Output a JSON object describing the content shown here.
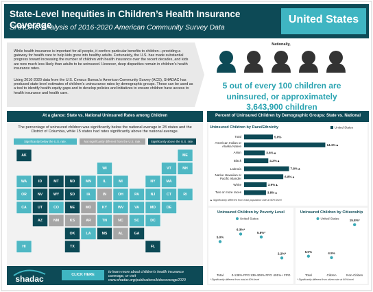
{
  "header": {
    "title": "State-Level Inequities in Children’s Health Insurance Coverage",
    "subtitle": "SHADAC Analysis of 2016-2020 American Community Survey Data",
    "location": "United States"
  },
  "intro": {
    "paragraphs": [
      "While health insurance is important for all people, it confers particular benefits to children—providing a gateway for health care to help kids grow into healthy adults. Fortunately, the U.S. has made substantial progress toward increasing the number of children with health insurance over the recent decades, and kids are now much less likely than adults to be uninsured. However, deep disparities remain in children’s health insurance rates.",
      "Using 2016-2020 data from the U.S. Census Bureau’s American Community Survey (ACS), SHADAC has produced state-level estimates of children’s uninsurance rates by demographic groups. These can be used as a tool to identify health equity gaps and to develop policies and initiatives to ensure children have access to health insurance and health care."
    ]
  },
  "national": {
    "lead": "Nationally,",
    "statement": "5 out of every 100 children are uninsured, or approximately 3,643,900 children"
  },
  "map_panel": {
    "heading": "At a glance: State vs. National Uninsured Rates among Children",
    "summary": "The percentage of uninsured children was significantly below the national average in 28 states and the District of Columbia, while 15 states had rates significantly above the national average.",
    "legend": [
      {
        "label": "Significantly below the U.S. rate.",
        "color": "#4fb8c4"
      },
      {
        "label": "Not significantly different from the U.S. rate.",
        "color": "#a6a6a6"
      },
      {
        "label": "Significantly above the U.S. rate.",
        "color": "#0d4a56"
      }
    ],
    "states": [
      {
        "abbr": "AK",
        "status": 2
      },
      {
        "abbr": "ME",
        "status": 0
      },
      {
        "abbr": "WI",
        "status": 0
      },
      {
        "abbr": "VT",
        "status": 0
      },
      {
        "abbr": "NH",
        "status": 0
      },
      {
        "abbr": "WA",
        "status": 0
      },
      {
        "abbr": "ID",
        "status": 2
      },
      {
        "abbr": "MT",
        "status": 2
      },
      {
        "abbr": "ND",
        "status": 2
      },
      {
        "abbr": "MN",
        "status": 0
      },
      {
        "abbr": "IL",
        "status": 0
      },
      {
        "abbr": "MI",
        "status": 0
      },
      {
        "abbr": "NY",
        "status": 0
      },
      {
        "abbr": "MA",
        "status": 0
      },
      {
        "abbr": "OR",
        "status": 0
      },
      {
        "abbr": "NV",
        "status": 2
      },
      {
        "abbr": "WY",
        "status": 2
      },
      {
        "abbr": "SD",
        "status": 2
      },
      {
        "abbr": "IA",
        "status": 0
      },
      {
        "abbr": "IN",
        "status": 1
      },
      {
        "abbr": "OH",
        "status": 0
      },
      {
        "abbr": "PA",
        "status": 0
      },
      {
        "abbr": "NJ",
        "status": 0
      },
      {
        "abbr": "CT",
        "status": 0
      },
      {
        "abbr": "RI",
        "status": 0
      },
      {
        "abbr": "CA",
        "status": 0
      },
      {
        "abbr": "UT",
        "status": 2
      },
      {
        "abbr": "CO",
        "status": 0
      },
      {
        "abbr": "NE",
        "status": 2
      },
      {
        "abbr": "MO",
        "status": 1
      },
      {
        "abbr": "KY",
        "status": 0
      },
      {
        "abbr": "WV",
        "status": 0
      },
      {
        "abbr": "VA",
        "status": 0
      },
      {
        "abbr": "MD",
        "status": 0
      },
      {
        "abbr": "DE",
        "status": 0
      },
      {
        "abbr": "AZ",
        "status": 2
      },
      {
        "abbr": "NM",
        "status": 1
      },
      {
        "abbr": "KS",
        "status": 1
      },
      {
        "abbr": "AR",
        "status": 1
      },
      {
        "abbr": "TN",
        "status": 0
      },
      {
        "abbr": "NC",
        "status": 1
      },
      {
        "abbr": "SC",
        "status": 0
      },
      {
        "abbr": "DC",
        "status": 0
      },
      {
        "abbr": "OK",
        "status": 2
      },
      {
        "abbr": "LA",
        "status": 0
      },
      {
        "abbr": "MS",
        "status": 2
      },
      {
        "abbr": "AL",
        "status": 1
      },
      {
        "abbr": "GA",
        "status": 2
      },
      {
        "abbr": "HI",
        "status": 0
      },
      {
        "abbr": "TX",
        "status": 2
      },
      {
        "abbr": "FL",
        "status": 2
      }
    ]
  },
  "footer": {
    "logo": "shadac",
    "button": "CLICK HERE",
    "link_text": "to learn more about children’s health insurance coverage, or visit www.shadac.org/publications/kidscoverage2020"
  },
  "demographics_heading": "Percent of Uninsured Children by Demographic Groups: State vs. National",
  "chart_data": [
    {
      "type": "bar",
      "title": "Uninsured Children by Race/Ethnicity",
      "categories": [
        "Total",
        "American Indian or Alaska Native",
        "Asian",
        "Black",
        "Latino/a",
        "Native Hawaiian or Pacific Islander",
        "White",
        "Two or more races"
      ],
      "series": [
        {
          "name": "United States",
          "color": "#0d4a56",
          "values": [
            5.0,
            14.1,
            3.6,
            4.2,
            7.8,
            6.8,
            3.9,
            3.8
          ],
          "value_labels": [
            "5.0%",
            "14.1%▲",
            "3.6%▲",
            "4.2%▲",
            "7.8%▲",
            "6.8%▲",
            "3.9%▲",
            "3.8%▲"
          ]
        }
      ],
      "xlim": [
        0,
        15
      ],
      "footnote": "▲ Significantly different from total population rate at 90% level"
    },
    {
      "type": "dot",
      "title": "Uninsured Children by Poverty Level",
      "categories": [
        "Total",
        "0-138% FPG",
        "139-400% FPG",
        "401%+ FPG"
      ],
      "series": [
        {
          "name": "United States",
          "color": "#3aa9b6",
          "values": [
            5.0,
            6.3,
            5.8,
            2.2
          ],
          "value_labels": [
            "5.0%",
            "6.3%*",
            "5.8%*",
            "2.2%*"
          ]
        }
      ],
      "ylim": [
        0,
        8
      ],
      "footnote": "* Significantly different from total at 90% level"
    },
    {
      "type": "dot",
      "title": "Uninsured Children by Citizenship",
      "categories": [
        "Total",
        "Citizen",
        "Non-Citizen"
      ],
      "series": [
        {
          "name": "United States",
          "color": "#3aa9b6",
          "values": [
            5.0,
            4.5,
            15.8
          ],
          "value_labels": [
            "5.0%",
            "4.5%",
            "15.8%*"
          ]
        }
      ],
      "ylim": [
        0,
        16
      ],
      "footnote": "* Significantly different from citizen rate at 90% level"
    }
  ]
}
